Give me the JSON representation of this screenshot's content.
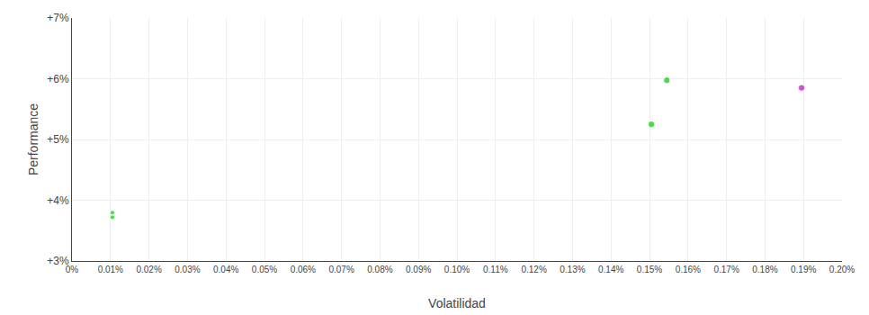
{
  "chart_data": {
    "type": "scatter",
    "xlabel": "Volatilidad",
    "ylabel": "Performance",
    "x": [
      0.000105,
      0.000105,
      0.001545,
      0.001505,
      0.001895
    ],
    "values": [
      0.03795,
      0.0372,
      0.05975,
      0.0525,
      0.0585
    ],
    "colors": [
      "#00cc00",
      "#00cc00",
      "#00cc00",
      "#00cc00",
      "#cc00cc"
    ],
    "sizes": [
      14,
      14,
      28,
      28,
      28
    ],
    "xlim": [
      0.0,
      0.002
    ],
    "xticks": [
      {
        "value": 0.0,
        "label": "0%"
      },
      {
        "value": 0.0001,
        "label": "0.01%"
      },
      {
        "value": 0.0002,
        "label": "0.02%"
      },
      {
        "value": 0.0003,
        "label": "0.03%"
      },
      {
        "value": 0.0004,
        "label": "0.04%"
      },
      {
        "value": 0.0005,
        "label": "0.05%"
      },
      {
        "value": 0.0006,
        "label": "0.06%"
      },
      {
        "value": 0.0007,
        "label": "0.07%"
      },
      {
        "value": 0.0008,
        "label": "0.08%"
      },
      {
        "value": 0.0009,
        "label": "0.09%"
      },
      {
        "value": 0.001,
        "label": "0.10%"
      },
      {
        "value": 0.0011,
        "label": "0.11%"
      },
      {
        "value": 0.0012,
        "label": "0.12%"
      },
      {
        "value": 0.0013,
        "label": "0.13%"
      },
      {
        "value": 0.0014,
        "label": "0.14%"
      },
      {
        "value": 0.0015,
        "label": "0.15%"
      },
      {
        "value": 0.0016,
        "label": "0.16%"
      },
      {
        "value": 0.0017,
        "label": "0.17%"
      },
      {
        "value": 0.0018,
        "label": "0.18%"
      },
      {
        "value": 0.0019,
        "label": "0.19%"
      },
      {
        "value": 0.002,
        "label": "0.20%"
      }
    ],
    "ylim": [
      0.03,
      0.07
    ],
    "yticks": [
      {
        "value": 0.03,
        "label": "+3%"
      },
      {
        "value": 0.04,
        "label": "+4%"
      },
      {
        "value": 0.05,
        "label": "+5%"
      },
      {
        "value": 0.06,
        "label": "+6%"
      },
      {
        "value": 0.07,
        "label": "+7%"
      }
    ],
    "grid": true
  }
}
